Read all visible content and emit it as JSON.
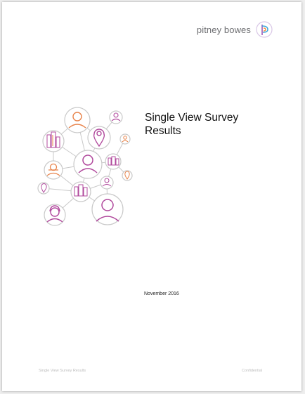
{
  "header": {
    "logo_text": "pitney bowes",
    "logo_icon": "pitney-bowes-logo-icon",
    "logo_colors": [
      "#9b59b6",
      "#f28a30",
      "#3ba6dc"
    ]
  },
  "cover": {
    "title": "Single View Survey Results",
    "date": "November 2016",
    "illustration_icon": "people-network-illustration",
    "colors": {
      "magenta": "#b0489c",
      "orange": "#e8834a",
      "gray": "#c9c9c9"
    }
  },
  "footer": {
    "left": "Single View Survey Results",
    "right": "Confidential"
  }
}
